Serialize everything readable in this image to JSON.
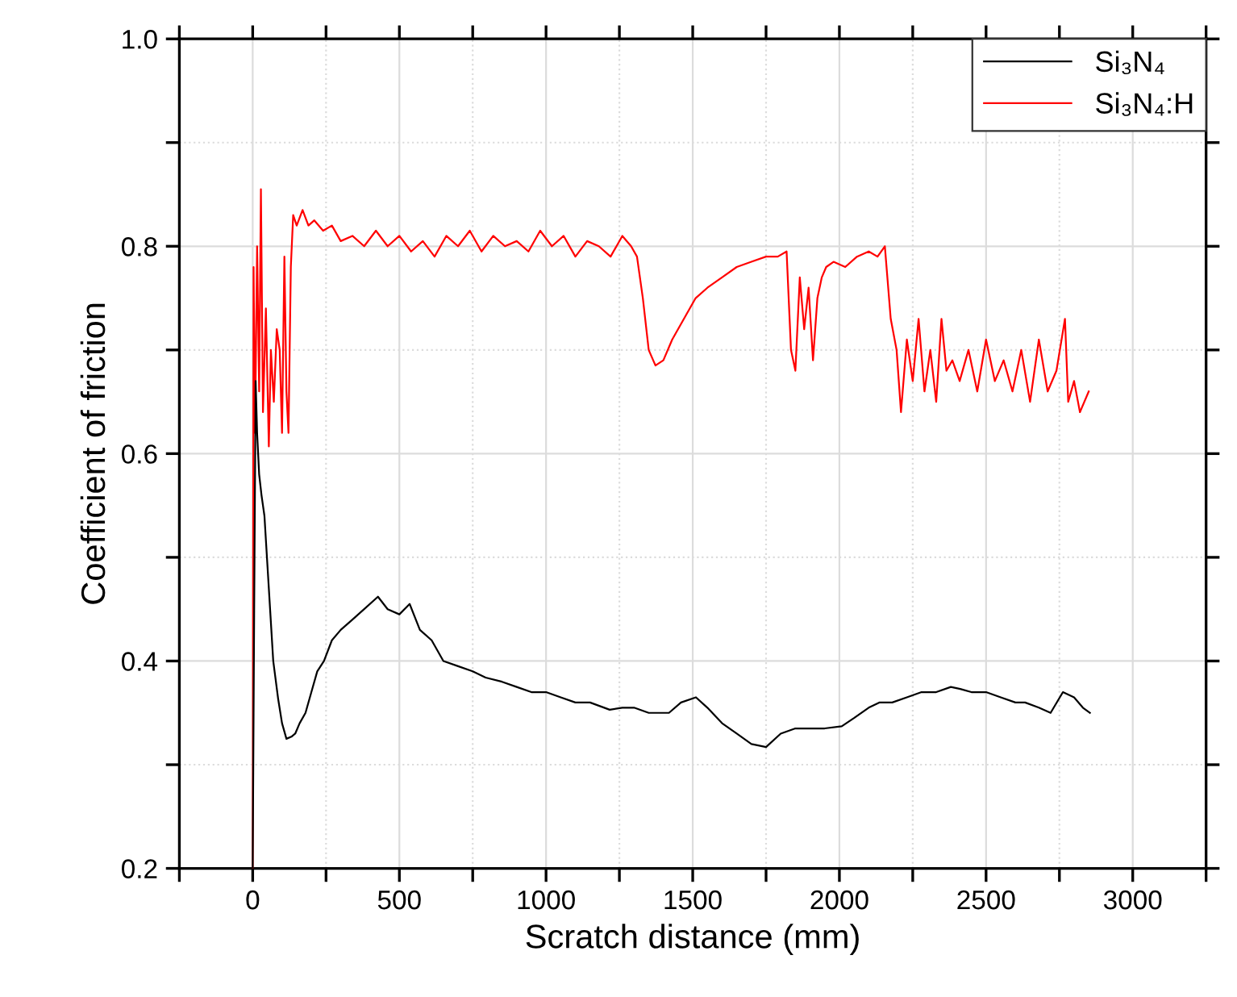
{
  "chart_data": {
    "type": "line",
    "xlabel": "Scratch distance (mm)",
    "ylabel": "Coefficient of friction",
    "xlim": [
      -250,
      3250
    ],
    "xticks": [
      {
        "value": -250,
        "label": null
      },
      0,
      {
        "value": 250,
        "label": null
      },
      500,
      {
        "value": 750,
        "label": null
      },
      1000,
      {
        "value": 1250,
        "label": null
      },
      1500,
      {
        "value": 1750,
        "label": null
      },
      2000,
      {
        "value": 2250,
        "label": null
      },
      2500,
      {
        "value": 2750,
        "label": null
      },
      3000,
      {
        "value": 3250,
        "label": null
      }
    ],
    "ylim": [
      0.2,
      1.0
    ],
    "yticks": [
      {
        "value": 0.2,
        "label": "0.2"
      },
      {
        "value": 0.3,
        "label": null
      },
      {
        "value": 0.4,
        "label": "0.4"
      },
      {
        "value": 0.5,
        "label": null
      },
      {
        "value": 0.6,
        "label": "0.6"
      },
      {
        "value": 0.7,
        "label": null
      },
      {
        "value": 0.8,
        "label": "0.8"
      },
      {
        "value": 0.9,
        "label": null
      },
      {
        "value": 1.0,
        "label": "1.0"
      }
    ],
    "grid": true,
    "legend": "top right",
    "marker": "none",
    "line_style": "solid",
    "series": [
      {
        "name": "Si₃N₄",
        "color": "#000000",
        "x": [
          0,
          5,
          10,
          15,
          22,
          30,
          40,
          55,
          70,
          87,
          100,
          115,
          132,
          145,
          160,
          180,
          200,
          220,
          243,
          270,
          300,
          340,
          380,
          427,
          460,
          500,
          535,
          570,
          610,
          650,
          700,
          750,
          794,
          850,
          900,
          950,
          1000,
          1050,
          1100,
          1150,
          1217,
          1260,
          1300,
          1350,
          1419,
          1460,
          1511,
          1550,
          1600,
          1650,
          1700,
          1750,
          1800,
          1850,
          1900,
          1950,
          2008,
          2050,
          2100,
          2136,
          2180,
          2230,
          2280,
          2330,
          2380,
          2412,
          2450,
          2500,
          2550,
          2600,
          2633,
          2680,
          2720,
          2762,
          2800,
          2830,
          2854
        ],
        "values": [
          0.2,
          0.45,
          0.67,
          0.62,
          0.58,
          0.56,
          0.54,
          0.47,
          0.4,
          0.363,
          0.34,
          0.325,
          0.327,
          0.33,
          0.34,
          0.35,
          0.37,
          0.39,
          0.4,
          0.42,
          0.43,
          0.44,
          0.45,
          0.462,
          0.45,
          0.445,
          0.455,
          0.43,
          0.42,
          0.4,
          0.395,
          0.39,
          0.384,
          0.38,
          0.375,
          0.37,
          0.37,
          0.365,
          0.36,
          0.36,
          0.353,
          0.355,
          0.355,
          0.35,
          0.35,
          0.36,
          0.365,
          0.355,
          0.34,
          0.33,
          0.32,
          0.317,
          0.33,
          0.335,
          0.335,
          0.335,
          0.337,
          0.345,
          0.355,
          0.36,
          0.36,
          0.365,
          0.37,
          0.37,
          0.375,
          0.373,
          0.37,
          0.37,
          0.365,
          0.36,
          0.36,
          0.355,
          0.35,
          0.37,
          0.365,
          0.355,
          0.35
        ]
      },
      {
        "name": "Si₃N₄:H",
        "color": "#ff0000",
        "x": [
          0,
          3,
          8,
          15,
          22,
          28,
          35,
          45,
          55,
          62,
          72,
          82,
          92,
          100,
          108,
          115,
          122,
          130,
          138,
          150,
          170,
          190,
          210,
          240,
          270,
          300,
          340,
          380,
          420,
          460,
          500,
          540,
          580,
          620,
          660,
          700,
          740,
          780,
          820,
          860,
          900,
          940,
          980,
          1020,
          1060,
          1100,
          1140,
          1180,
          1220,
          1260,
          1290,
          1310,
          1330,
          1350,
          1373,
          1400,
          1430,
          1470,
          1510,
          1550,
          1600,
          1650,
          1700,
          1750,
          1790,
          1820,
          1835,
          1850,
          1865,
          1880,
          1895,
          1910,
          1925,
          1940,
          1955,
          1980,
          2020,
          2060,
          2100,
          2130,
          2155,
          2175,
          2195,
          2210,
          2230,
          2250,
          2270,
          2290,
          2310,
          2330,
          2348,
          2365,
          2385,
          2410,
          2440,
          2470,
          2500,
          2530,
          2560,
          2590,
          2620,
          2650,
          2680,
          2710,
          2740,
          2769,
          2780,
          2800,
          2820,
          2850
        ],
        "values": [
          0.2,
          0.78,
          0.62,
          0.8,
          0.66,
          0.855,
          0.64,
          0.74,
          0.607,
          0.7,
          0.65,
          0.72,
          0.7,
          0.62,
          0.79,
          0.66,
          0.62,
          0.78,
          0.83,
          0.82,
          0.835,
          0.82,
          0.825,
          0.815,
          0.82,
          0.805,
          0.81,
          0.8,
          0.815,
          0.8,
          0.81,
          0.795,
          0.805,
          0.79,
          0.81,
          0.8,
          0.815,
          0.795,
          0.81,
          0.8,
          0.805,
          0.795,
          0.815,
          0.8,
          0.81,
          0.79,
          0.805,
          0.8,
          0.79,
          0.81,
          0.8,
          0.79,
          0.75,
          0.7,
          0.685,
          0.69,
          0.71,
          0.73,
          0.75,
          0.76,
          0.77,
          0.78,
          0.785,
          0.79,
          0.79,
          0.795,
          0.7,
          0.68,
          0.77,
          0.72,
          0.76,
          0.69,
          0.75,
          0.77,
          0.78,
          0.785,
          0.78,
          0.79,
          0.795,
          0.79,
          0.8,
          0.73,
          0.7,
          0.64,
          0.71,
          0.67,
          0.73,
          0.66,
          0.7,
          0.65,
          0.73,
          0.68,
          0.69,
          0.67,
          0.7,
          0.66,
          0.71,
          0.67,
          0.69,
          0.66,
          0.7,
          0.65,
          0.71,
          0.66,
          0.68,
          0.73,
          0.65,
          0.67,
          0.64,
          0.66
        ]
      }
    ]
  }
}
